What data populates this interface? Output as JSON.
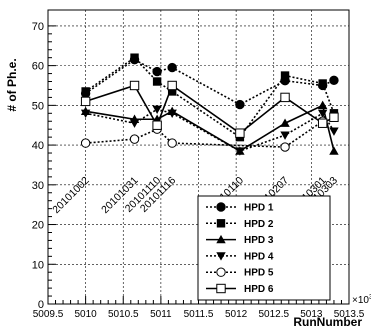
{
  "chart_data": {
    "type": "line",
    "title": "",
    "xlabel": "RunNumber",
    "ylabel": "# of Ph.e.",
    "x_multiplier_label": "×10",
    "x_multiplier_exp": "3",
    "xlim": [
      5009.5,
      5013.5
    ],
    "ylim": [
      0,
      74
    ],
    "x_ticks": [
      5009.5,
      5010,
      5010.5,
      5011,
      5011.5,
      5012,
      5012.5,
      5013,
      5013.5
    ],
    "x_tick_labels": [
      "5009.5",
      "5010",
      "5010.5",
      "5011",
      "5011.5",
      "5012",
      "5012.5",
      "5013",
      "5013.5"
    ],
    "y_ticks": [
      0,
      10,
      20,
      30,
      40,
      50,
      60,
      70
    ],
    "y_tick_labels": [
      "0",
      "10",
      "20",
      "30",
      "40",
      "50",
      "60",
      "70"
    ],
    "grid": true,
    "legend_position": "bottom-right",
    "x": [
      5010.0,
      5010.65,
      5010.95,
      5011.15,
      5012.05,
      5012.65,
      5013.15,
      5013.3
    ],
    "run_labels": [
      "20101002",
      "20101031",
      "20101110",
      "20101116",
      "20110110",
      "20110207",
      "20110301",
      "20110303"
    ],
    "run_label_positions": [
      5010.0,
      5010.65,
      5010.95,
      5011.15,
      5012.05,
      5012.65,
      5013.15,
      5013.3
    ],
    "series": [
      {
        "name": "HPD 1",
        "marker": "circle-filled",
        "dash": "2,2",
        "values": [
          53,
          61.5,
          58.5,
          59.5,
          50.2,
          56.2,
          55,
          56.3
        ]
      },
      {
        "name": "HPD 2",
        "marker": "square-filled",
        "dash": "2,2",
        "values": [
          53.5,
          62,
          56,
          53.5,
          42,
          57.5,
          55.5,
          48
        ]
      },
      {
        "name": "HPD 3",
        "marker": "triangle-up",
        "dash": "",
        "values": [
          48.5,
          46.5,
          46.5,
          48.5,
          38.5,
          45.5,
          50,
          38.5
        ]
      },
      {
        "name": "HPD 4",
        "marker": "triangle-down",
        "dash": "2,2",
        "values": [
          48,
          45.5,
          49,
          48,
          38.5,
          42.5,
          48,
          43.5
        ]
      },
      {
        "name": "HPD 5",
        "marker": "circle-open",
        "dash": "2,2",
        "values": [
          40.5,
          41.5,
          44,
          40.5,
          null,
          39.5,
          46,
          null
        ]
      },
      {
        "name": "HPD 6",
        "marker": "square-open",
        "dash": "",
        "values": [
          51,
          55,
          45,
          55,
          43,
          52,
          45.5,
          47
        ]
      }
    ]
  }
}
